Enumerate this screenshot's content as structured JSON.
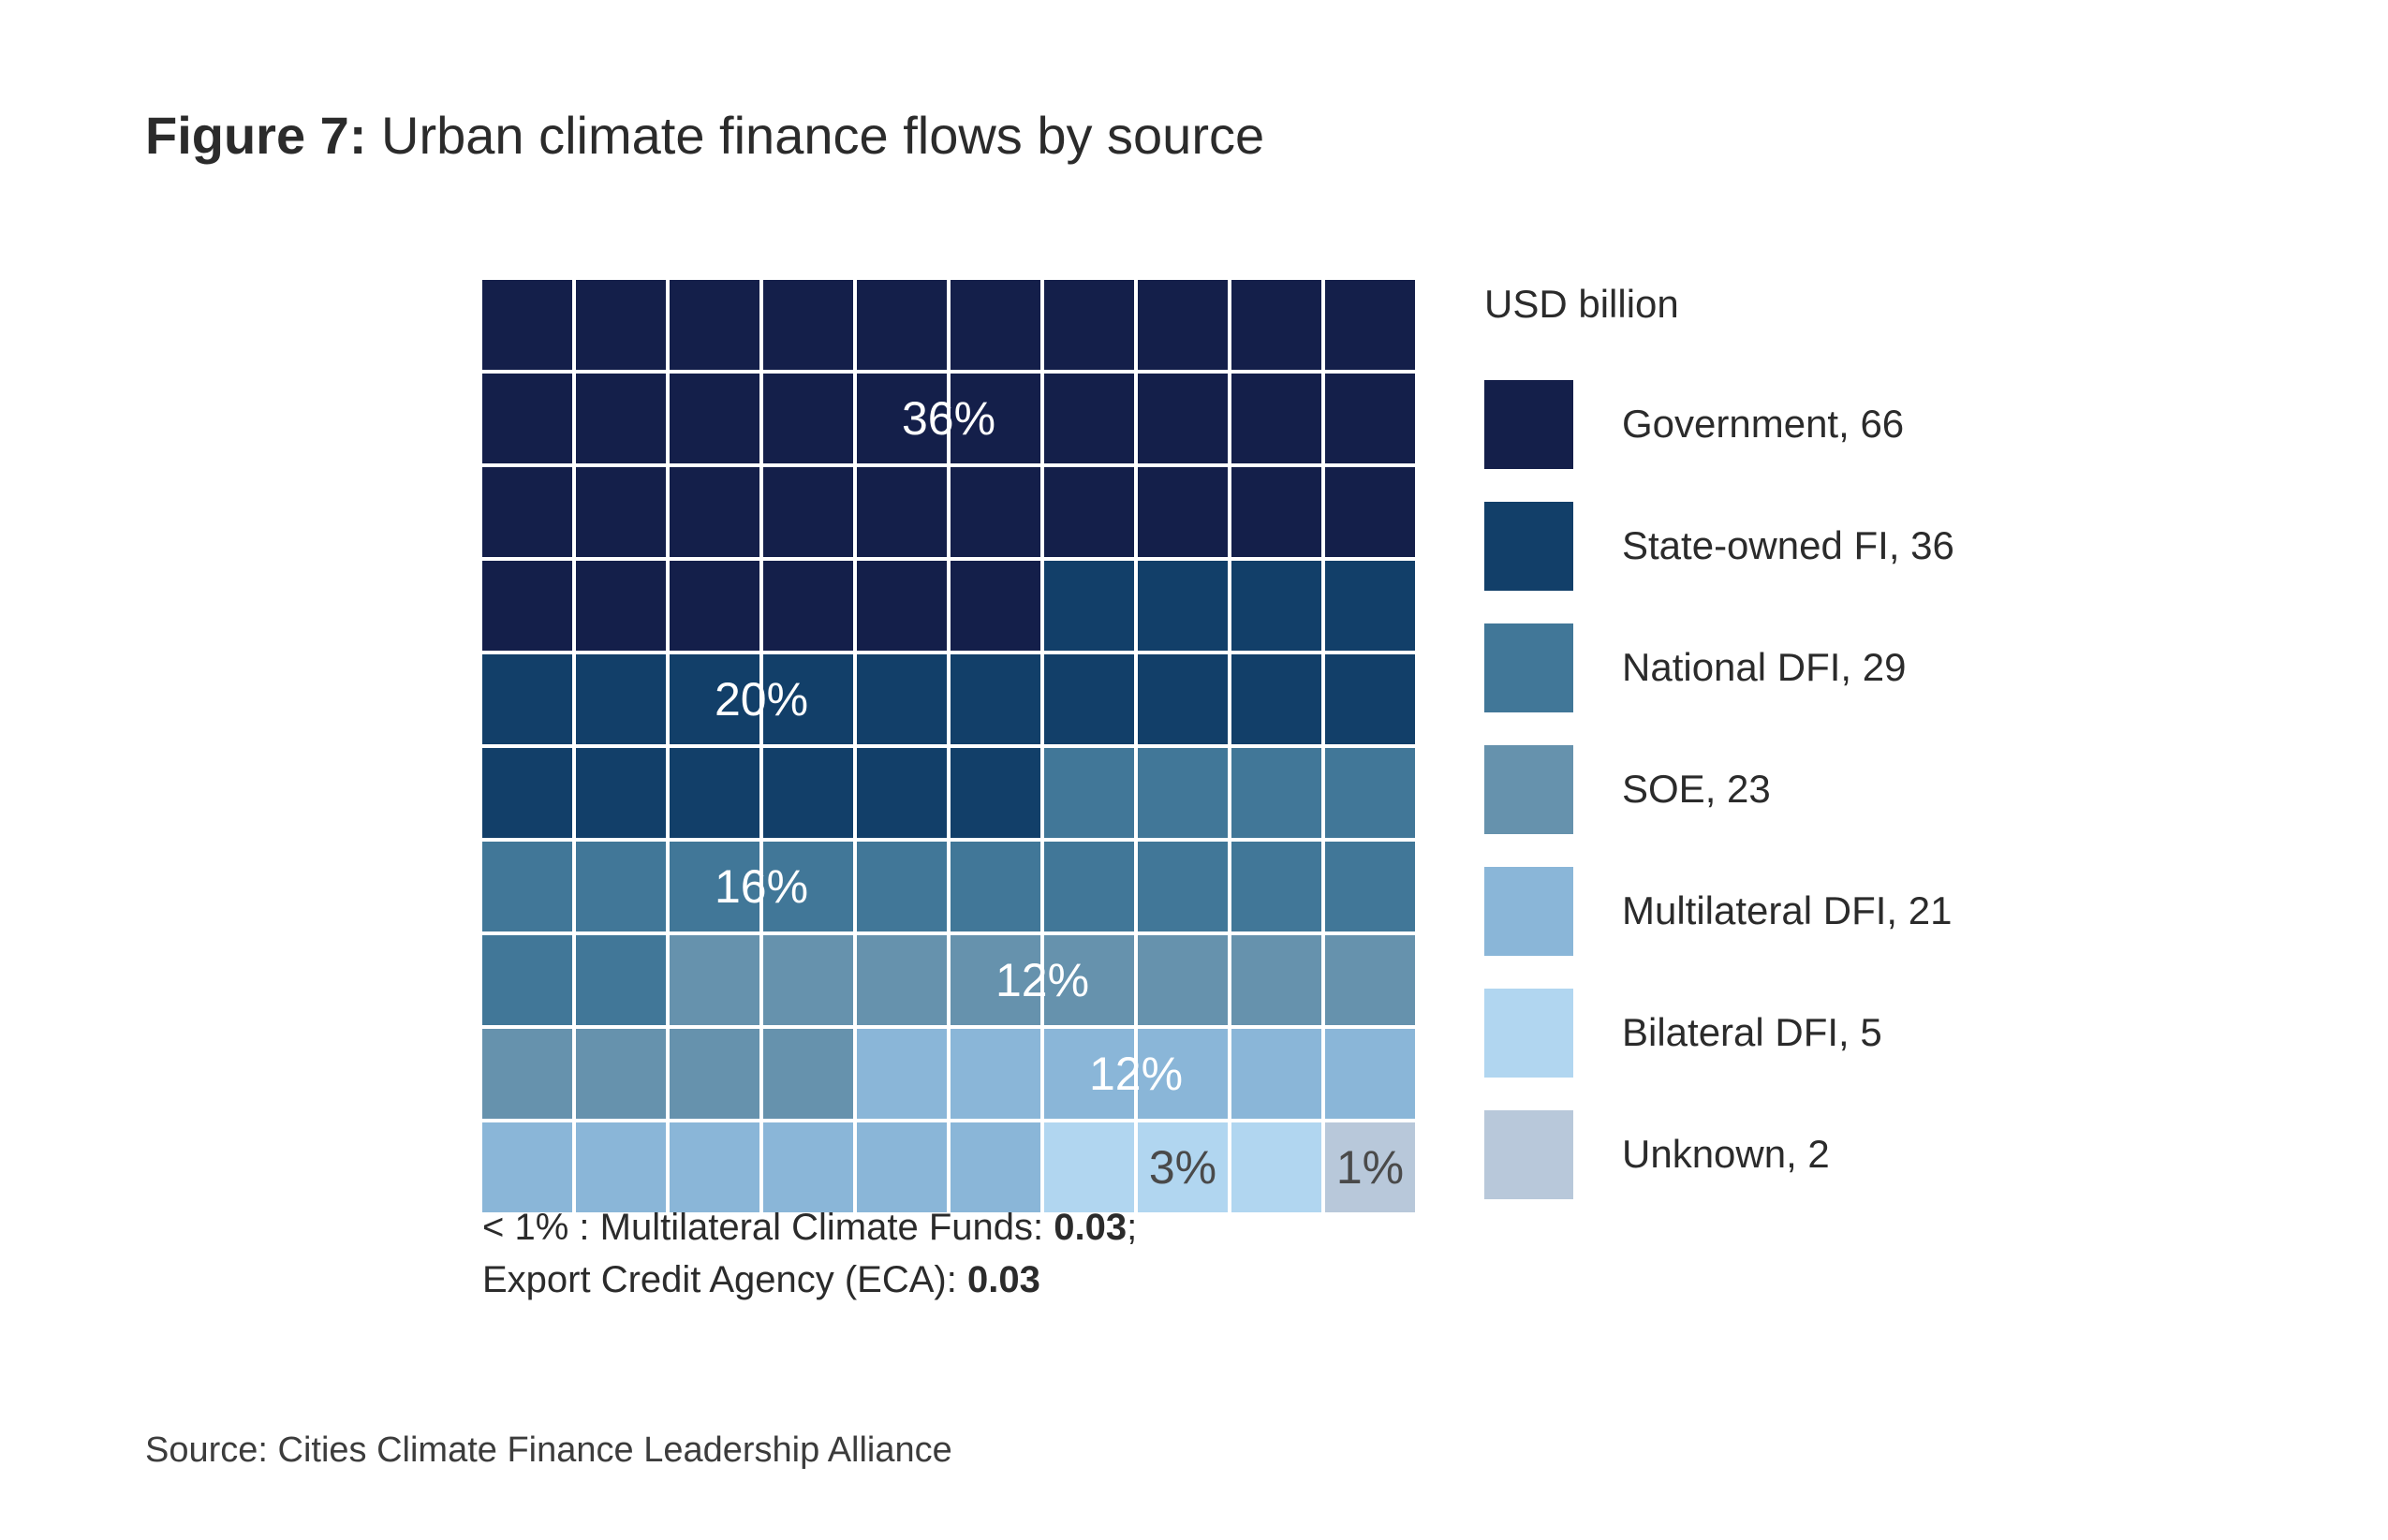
{
  "title": {
    "label": "Figure 7:",
    "text": "Urban climate finance flows by source"
  },
  "legend": {
    "title": "USD billion"
  },
  "chart_data": {
    "type": "waffle",
    "unit": "USD billion",
    "grid": {
      "rows": 10,
      "cols": 10
    },
    "categories": [
      {
        "name": "Government",
        "value": 66,
        "share_label": "36%",
        "squares": 36,
        "color": "#141f4a",
        "label_color": "#ffffff"
      },
      {
        "name": "State-owned FI",
        "value": 36,
        "share_label": "20%",
        "squares": 20,
        "color": "#123f69",
        "label_color": "#ffffff"
      },
      {
        "name": "National DFI",
        "value": 29,
        "share_label": "16%",
        "squares": 16,
        "color": "#417798",
        "label_color": "#ffffff"
      },
      {
        "name": "SOE",
        "value": 23,
        "share_label": "12%",
        "squares": 12,
        "color": "#6692ad",
        "label_color": "#ffffff"
      },
      {
        "name": "Multilateral DFI",
        "value": 21,
        "share_label": "12%",
        "squares": 12,
        "color": "#8ab6d8",
        "label_color": "#ffffff"
      },
      {
        "name": "Bilateral DFI",
        "value": 5,
        "share_label": "3%",
        "squares": 3,
        "color": "#b1d6f0",
        "label_color": "#4a4a4a"
      },
      {
        "name": "Unknown",
        "value": 2,
        "share_label": "1%",
        "squares": 1,
        "color": "#b8c8da",
        "label_color": "#4a4a4a"
      }
    ],
    "legend_entries": [
      "Government, 66",
      "State-owned FI, 36",
      "National DFI, 29",
      "SOE, 23",
      "Multilateral DFI, 21",
      "Bilateral DFI, 5",
      "Unknown, 2"
    ]
  },
  "footnote": {
    "line1_prefix": "< 1% : Multilateral Climate Funds: ",
    "line1_value": "0.03",
    "line1_suffix": ";",
    "line2_prefix": "Export Credit Agency (ECA): ",
    "line2_value": "0.03"
  },
  "source": "Source: Cities Climate Finance Leadership Alliance"
}
